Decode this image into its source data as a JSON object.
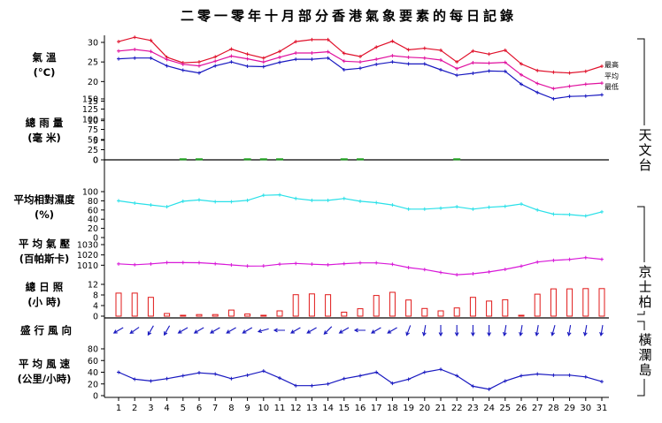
{
  "title": "二零一零年十月部分香港氣象要素的每日記錄",
  "days": [
    "1",
    "2",
    "3",
    "4",
    "5",
    "6",
    "7",
    "8",
    "9",
    "10",
    "11",
    "12",
    "13",
    "14",
    "15",
    "16",
    "17",
    "18",
    "19",
    "20",
    "21",
    "22",
    "23",
    "24",
    "25",
    "26",
    "27",
    "28",
    "29",
    "30",
    "31"
  ],
  "stations": {
    "observatory": "天文台",
    "kings_park": "京士柏",
    "waglan": "橫瀾島"
  },
  "series_labels": {
    "max": "最高",
    "mean": "平均",
    "min": "最低"
  },
  "panel_labels": {
    "temp": [
      "氣 溫",
      "(°C)"
    ],
    "rain": [
      "總 雨 量",
      "(毫 米)"
    ],
    "humidity": [
      "平均相對濕度",
      "(%)"
    ],
    "pressure": [
      "平 均 氣 壓",
      "(百帕斯卡)"
    ],
    "sunshine": [
      "總 日 照",
      "(小 時)"
    ],
    "wind_dir": [
      "盛 行 風 向"
    ],
    "wind_speed": [
      "平 均 風 速",
      "(公里/小時)"
    ]
  },
  "colors": {
    "max": "#e0102a",
    "mean": "#e0109e",
    "min": "#1818c0",
    "rain": "#20a020",
    "humidity": "#28e0e8",
    "pressure": "#d818d8",
    "sunshine": "#e01818",
    "wind": "#1818c0"
  },
  "chart_data": [
    {
      "type": "line",
      "name": "temperature",
      "yticks": [
        0,
        5,
        10,
        15,
        20,
        25,
        30
      ],
      "ylim": [
        0,
        31
      ],
      "series": [
        {
          "name": "最高",
          "values": [
            30.2,
            31.3,
            30.5,
            26.2,
            24.8,
            25.0,
            26.3,
            28.3,
            27.0,
            26.0,
            27.7,
            30.2,
            30.7,
            30.7,
            27.2,
            26.4,
            28.8,
            30.3,
            28.1,
            28.5,
            28.0,
            25.0,
            27.8,
            27.0,
            28.0,
            24.5,
            22.8,
            22.4,
            22.2,
            22.6,
            23.9
          ]
        },
        {
          "name": "平均",
          "values": [
            27.8,
            28.2,
            27.7,
            25.6,
            24.4,
            24.0,
            25.2,
            26.5,
            25.8,
            25.0,
            26.2,
            27.3,
            27.3,
            27.6,
            25.2,
            25.0,
            25.7,
            26.6,
            26.2,
            26.0,
            25.5,
            23.3,
            24.8,
            24.7,
            24.9,
            21.7,
            19.5,
            18.2,
            18.8,
            19.3,
            19.6
          ]
        },
        {
          "name": "最低",
          "values": [
            25.8,
            26.0,
            26.0,
            24.0,
            22.9,
            22.2,
            24.0,
            25.0,
            23.9,
            23.8,
            24.9,
            25.7,
            25.7,
            26.0,
            23.0,
            23.4,
            24.4,
            25.0,
            24.5,
            24.5,
            23.0,
            21.6,
            22.1,
            22.7,
            22.6,
            19.3,
            17.2,
            15.6,
            16.2,
            16.3,
            16.6
          ]
        }
      ]
    },
    {
      "type": "bar",
      "name": "rainfall",
      "yticks": [
        0,
        25,
        50,
        75,
        100,
        125,
        150
      ],
      "values": [
        0,
        0,
        0,
        0,
        0.4,
        0.3,
        0,
        0,
        0.2,
        1.6,
        0.5,
        0,
        0,
        0,
        0.3,
        0.2,
        0,
        0,
        0,
        0,
        0,
        0.1,
        0,
        0,
        0,
        0,
        0,
        0,
        0,
        0,
        0
      ]
    },
    {
      "type": "line",
      "name": "relative_humidity",
      "yticks": [
        0,
        20,
        40,
        60,
        80,
        100
      ],
      "values": [
        80,
        75,
        71,
        67,
        79,
        82,
        78,
        78,
        81,
        92,
        93,
        85,
        81,
        81,
        85,
        79,
        76,
        71,
        62,
        62,
        64,
        67,
        62,
        66,
        68,
        73,
        60,
        51,
        50,
        47,
        56
      ]
    },
    {
      "type": "line",
      "name": "mean_pressure",
      "yticks": [
        1010,
        1020,
        1030
      ],
      "values": [
        1011.3,
        1010.5,
        1011.3,
        1012.5,
        1012.5,
        1012.4,
        1011.5,
        1010.3,
        1009.2,
        1009.3,
        1011.0,
        1011.7,
        1011.0,
        1010.4,
        1011.5,
        1012.3,
        1012.3,
        1010.9,
        1007.7,
        1005.8,
        1003.0,
        1000.8,
        1001.7,
        1003.5,
        1006.0,
        1009.1,
        1013.1,
        1014.7,
        1015.6,
        1017.4,
        1015.8
      ]
    },
    {
      "type": "bar",
      "name": "sunshine",
      "yticks": [
        0,
        4,
        8,
        12
      ],
      "values": [
        8.7,
        8.7,
        7.1,
        1.0,
        0,
        0.6,
        0.6,
        2.3,
        0.8,
        0,
        2.0,
        8.1,
        8.4,
        8.1,
        1.5,
        2.8,
        7.8,
        9.0,
        6.1,
        2.9,
        2.0,
        3.1,
        7.1,
        5.7,
        6.2,
        0.2,
        8.3,
        10.3,
        10.3,
        10.4,
        10.4
      ]
    },
    {
      "type": "arrows",
      "name": "prevailing_wind_direction_deg",
      "values": [
        60,
        55,
        30,
        30,
        60,
        60,
        60,
        60,
        60,
        75,
        90,
        60,
        60,
        45,
        60,
        90,
        60,
        60,
        20,
        10,
        0,
        0,
        0,
        0,
        10,
        10,
        10,
        15,
        10,
        10,
        10
      ]
    },
    {
      "type": "line",
      "name": "mean_wind_speed",
      "yticks": [
        0,
        20,
        40,
        60,
        80
      ],
      "values": [
        40,
        28,
        25,
        29,
        34,
        39,
        37,
        29,
        35,
        42,
        30,
        17,
        17,
        20,
        29,
        34,
        40,
        21,
        28,
        40,
        45,
        34,
        16,
        11,
        25,
        34,
        37,
        35,
        35,
        32,
        24
      ]
    }
  ]
}
